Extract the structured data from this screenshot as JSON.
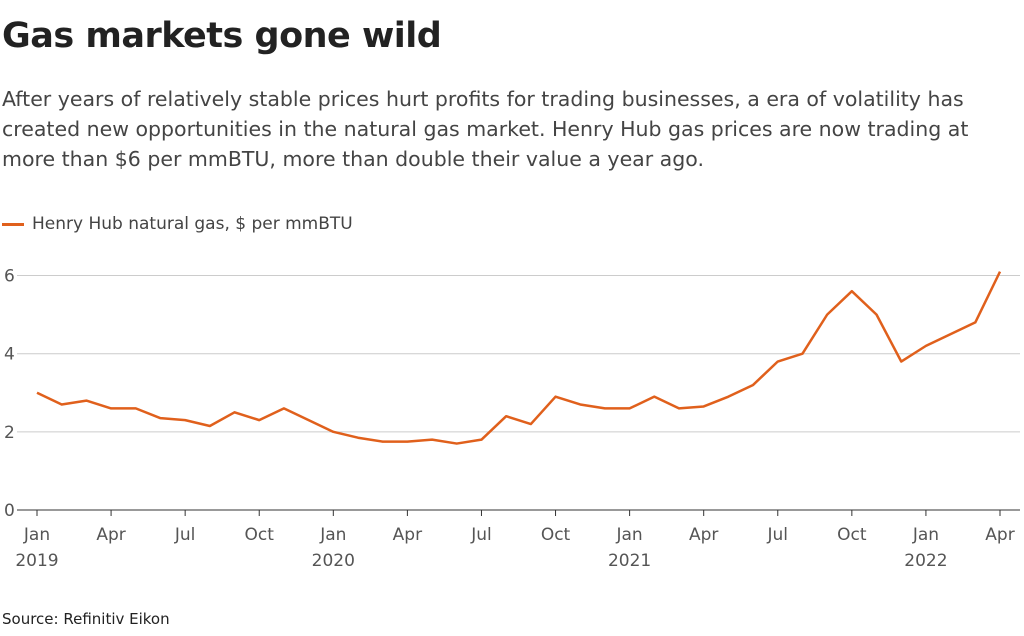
{
  "chart_data": {
    "type": "line",
    "title": "Gas markets gone wild",
    "subtitle": "After years of relatively stable prices hurt profits for trading businesses, a era of volatility has created new opportunities in the natural gas market. Henry Hub gas prices are now trading at more than $6 per mmBTU, more than double their value a year ago.",
    "source": "Source: Refinitiv Eikon",
    "x": [
      "2019-01",
      "2019-02",
      "2019-03",
      "2019-04",
      "2019-05",
      "2019-06",
      "2019-07",
      "2019-08",
      "2019-09",
      "2019-10",
      "2019-11",
      "2019-12",
      "2020-01",
      "2020-02",
      "2020-03",
      "2020-04",
      "2020-05",
      "2020-06",
      "2020-07",
      "2020-08",
      "2020-09",
      "2020-10",
      "2020-11",
      "2020-12",
      "2021-01",
      "2021-02",
      "2021-03",
      "2021-04",
      "2021-05",
      "2021-06",
      "2021-07",
      "2021-08",
      "2021-09",
      "2021-10",
      "2021-11",
      "2021-12",
      "2022-01",
      "2022-02",
      "2022-03",
      "2022-04"
    ],
    "series": [
      {
        "name": "Henry Hub natural gas, $ per mmBTU",
        "color": "#e0601c",
        "values": [
          3.0,
          2.7,
          2.8,
          2.6,
          2.6,
          2.35,
          2.3,
          2.15,
          2.5,
          2.3,
          2.6,
          2.3,
          2.0,
          1.85,
          1.75,
          1.75,
          1.8,
          1.7,
          1.8,
          2.4,
          2.2,
          2.9,
          2.7,
          2.6,
          2.6,
          2.9,
          2.6,
          2.65,
          2.9,
          3.2,
          3.8,
          4.0,
          5.0,
          5.6,
          5.0,
          3.8,
          4.2,
          4.5,
          4.8,
          6.1
        ]
      }
    ],
    "xlim": [
      "2019-01",
      "2022-04"
    ],
    "xticks": [
      {
        "value": "2019-01",
        "label": "Jan",
        "year": "2019"
      },
      {
        "value": "2019-04",
        "label": "Apr"
      },
      {
        "value": "2019-07",
        "label": "Jul"
      },
      {
        "value": "2019-10",
        "label": "Oct"
      },
      {
        "value": "2020-01",
        "label": "Jan",
        "year": "2020"
      },
      {
        "value": "2020-04",
        "label": "Apr"
      },
      {
        "value": "2020-07",
        "label": "Jul"
      },
      {
        "value": "2020-10",
        "label": "Oct"
      },
      {
        "value": "2021-01",
        "label": "Jan",
        "year": "2021"
      },
      {
        "value": "2021-04",
        "label": "Apr"
      },
      {
        "value": "2021-07",
        "label": "Jul"
      },
      {
        "value": "2021-10",
        "label": "Oct"
      },
      {
        "value": "2022-01",
        "label": "Jan",
        "year": "2022"
      },
      {
        "value": "2022-04",
        "label": "Apr"
      }
    ],
    "ylim": [
      0,
      6.5
    ],
    "yticks": [
      0,
      2,
      4,
      6
    ],
    "grid": true
  }
}
